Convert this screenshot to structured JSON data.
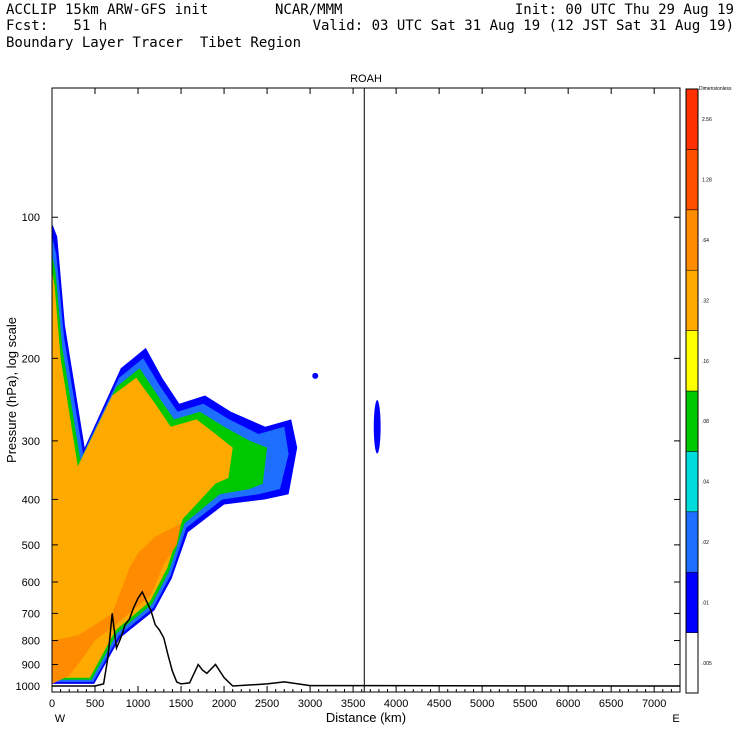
{
  "header": {
    "left_line1": "ACCLIP 15km ARW-GFS init",
    "left_line2": "Fcst:   51 h",
    "left_line3": "Boundary Layer Tracer  Tibet Region",
    "center_line1": "NCAR/MMM",
    "right_line1": "Init: 00 UTC Thu 29 Aug 19",
    "right_line2": "Valid: 03 UTC Sat 31 Aug 19 (12 JST Sat 31 Aug 19)"
  },
  "chart_data": {
    "type": "heatmap",
    "title": "ROAH",
    "xlabel": "Distance (km)",
    "ylabel": "Pressure (hPa), log scale",
    "x_end_left": "W",
    "x_end_right": "E",
    "xlim": [
      0,
      7300
    ],
    "ylim": [
      1030,
      53
    ],
    "y_scale": "log",
    "x_ticks": [
      0,
      500,
      1000,
      1500,
      2000,
      2500,
      3000,
      3500,
      4000,
      4500,
      5000,
      5500,
      6000,
      6500,
      7000
    ],
    "y_ticks": [
      100,
      200,
      300,
      400,
      500,
      600,
      700,
      800,
      900,
      1000
    ],
    "marker_line_x": 3630,
    "colorbar": {
      "title": "Dimensionless",
      "levels": [
        ".005",
        ".01",
        ".02",
        ".04",
        ".08",
        ".16",
        ".32",
        ".64",
        "1.28",
        "2.56"
      ],
      "colors": [
        "#ffffff",
        "#0000ff",
        "#1e6eff",
        "#00dcdc",
        "#00c800",
        "#ffff00",
        "#ffaa00",
        "#ff8c00",
        "#ff5000",
        "#ff3000"
      ]
    },
    "terrain_km_hpa": [
      [
        0,
        1000
      ],
      [
        500,
        1000
      ],
      [
        600,
        990
      ],
      [
        650,
        870
      ],
      [
        700,
        700
      ],
      [
        750,
        830
      ],
      [
        800,
        790
      ],
      [
        850,
        740
      ],
      [
        900,
        720
      ],
      [
        950,
        680
      ],
      [
        1000,
        650
      ],
      [
        1050,
        630
      ],
      [
        1100,
        660
      ],
      [
        1150,
        690
      ],
      [
        1200,
        740
      ],
      [
        1250,
        760
      ],
      [
        1300,
        790
      ],
      [
        1350,
        860
      ],
      [
        1400,
        930
      ],
      [
        1450,
        980
      ],
      [
        1500,
        990
      ],
      [
        1600,
        985
      ],
      [
        1700,
        900
      ],
      [
        1750,
        925
      ],
      [
        1800,
        940
      ],
      [
        1900,
        900
      ],
      [
        2000,
        960
      ],
      [
        2100,
        1000
      ],
      [
        2500,
        990
      ],
      [
        2700,
        980
      ],
      [
        3000,
        998
      ],
      [
        7300,
        1000
      ]
    ],
    "tracer_regions": [
      {
        "level": ".005",
        "polygon": [
          [
            0,
            100
          ],
          [
            80,
            105
          ],
          [
            160,
            160
          ],
          [
            400,
            300
          ],
          [
            800,
            200
          ],
          [
            1100,
            180
          ],
          [
            1300,
            210
          ],
          [
            1500,
            240
          ],
          [
            1800,
            230
          ],
          [
            2100,
            250
          ],
          [
            2500,
            270
          ],
          [
            2800,
            260
          ],
          [
            2900,
            300
          ],
          [
            2800,
            400
          ],
          [
            2500,
            410
          ],
          [
            2000,
            420
          ],
          [
            1600,
            480
          ],
          [
            1400,
            600
          ],
          [
            1200,
            700
          ],
          [
            800,
            800
          ],
          [
            500,
            1000
          ],
          [
            0,
            1000
          ]
        ]
      },
      {
        "level": ".01",
        "polygon": [
          [
            0,
            103
          ],
          [
            60,
            110
          ],
          [
            150,
            170
          ],
          [
            380,
            310
          ],
          [
            800,
            210
          ],
          [
            1090,
            190
          ],
          [
            1280,
            220
          ],
          [
            1480,
            250
          ],
          [
            1780,
            240
          ],
          [
            2080,
            260
          ],
          [
            2480,
            280
          ],
          [
            2780,
            270
          ],
          [
            2850,
            310
          ],
          [
            2750,
            390
          ],
          [
            2470,
            400
          ],
          [
            2000,
            410
          ],
          [
            1580,
            470
          ],
          [
            1390,
            590
          ],
          [
            1190,
            690
          ],
          [
            790,
            790
          ],
          [
            490,
            990
          ],
          [
            0,
            990
          ]
        ]
      },
      {
        "level": ".02",
        "polygon": [
          [
            0,
            110
          ],
          [
            50,
            120
          ],
          [
            140,
            180
          ],
          [
            360,
            320
          ],
          [
            780,
            220
          ],
          [
            1060,
            200
          ],
          [
            1260,
            230
          ],
          [
            1460,
            260
          ],
          [
            1760,
            250
          ],
          [
            2060,
            270
          ],
          [
            2400,
            290
          ],
          [
            2700,
            280
          ],
          [
            2750,
            320
          ],
          [
            2650,
            380
          ],
          [
            2400,
            390
          ],
          [
            1980,
            400
          ],
          [
            1560,
            460
          ],
          [
            1380,
            580
          ],
          [
            1180,
            680
          ],
          [
            780,
            780
          ],
          [
            480,
            980
          ],
          [
            0,
            980
          ]
        ]
      },
      {
        "level": ".08",
        "polygon": [
          [
            0,
            120
          ],
          [
            40,
            130
          ],
          [
            120,
            190
          ],
          [
            330,
            330
          ],
          [
            750,
            230
          ],
          [
            1020,
            210
          ],
          [
            1230,
            240
          ],
          [
            1420,
            270
          ],
          [
            1720,
            260
          ],
          [
            2000,
            280
          ],
          [
            2300,
            300
          ],
          [
            2500,
            310
          ],
          [
            2450,
            370
          ],
          [
            2300,
            380
          ],
          [
            1950,
            390
          ],
          [
            1540,
            450
          ],
          [
            1360,
            570
          ],
          [
            1160,
            670
          ],
          [
            760,
            770
          ],
          [
            460,
            970
          ],
          [
            0,
            970
          ]
        ]
      },
      {
        "level": ".32",
        "polygon": [
          [
            0,
            130
          ],
          [
            30,
            140
          ],
          [
            100,
            200
          ],
          [
            300,
            340
          ],
          [
            700,
            240
          ],
          [
            980,
            220
          ],
          [
            1200,
            250
          ],
          [
            1380,
            280
          ],
          [
            1680,
            270
          ],
          [
            1900,
            290
          ],
          [
            2100,
            310
          ],
          [
            2050,
            360
          ],
          [
            1900,
            370
          ],
          [
            1520,
            440
          ],
          [
            1340,
            560
          ],
          [
            1140,
            660
          ],
          [
            740,
            760
          ],
          [
            440,
            960
          ],
          [
            0,
            960
          ]
        ]
      },
      {
        "level": ".64",
        "polygon": [
          [
            0,
            800
          ],
          [
            300,
            780
          ],
          [
            500,
            740
          ],
          [
            700,
            700
          ],
          [
            900,
            560
          ],
          [
            1000,
            520
          ],
          [
            1100,
            500
          ],
          [
            1200,
            480
          ],
          [
            1400,
            460
          ],
          [
            1500,
            450
          ],
          [
            1450,
            500
          ],
          [
            1300,
            550
          ],
          [
            1150,
            640
          ],
          [
            900,
            700
          ],
          [
            700,
            750
          ],
          [
            500,
            800
          ],
          [
            400,
            850
          ],
          [
            300,
            900
          ],
          [
            200,
            950
          ],
          [
            0,
            990
          ]
        ]
      }
    ],
    "tracer_blobs": [
      {
        "level": ".01",
        "center": [
          3060,
          218
        ],
        "radius_km": 30,
        "radius_hpa_frac": 0.01
      },
      {
        "level": ".01",
        "center": [
          3780,
          280
        ],
        "radius_km": 40,
        "radius_hpa_frac": 0.14
      }
    ]
  }
}
